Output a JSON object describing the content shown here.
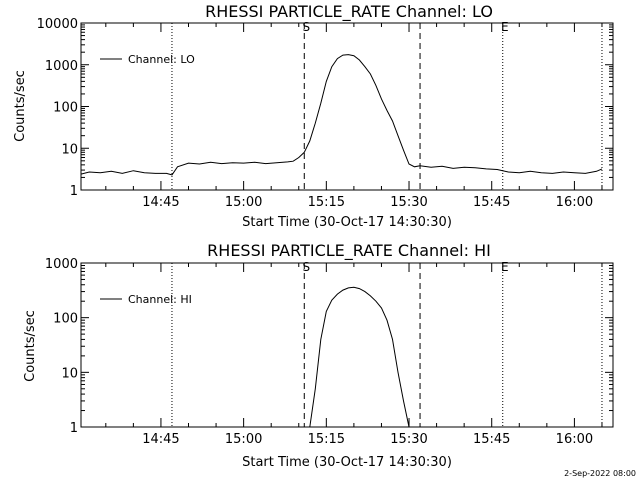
{
  "footer": {
    "date_stamp": "2-Sep-2022 08:00"
  },
  "chart_data": [
    {
      "type": "line",
      "title": "RHESSI PARTICLE_RATE Channel: LO",
      "xlabel": "Start Time (30-Oct-17 14:30:30)",
      "ylabel": "Counts/sec",
      "yscale": "log",
      "xlim": [
        "14:30:30",
        "16:07:00"
      ],
      "ylim": [
        1,
        10000
      ],
      "x_ticks": [
        "14:45",
        "15:00",
        "15:15",
        "15:30",
        "15:45",
        "16:00"
      ],
      "y_ticks": [
        "1",
        "10",
        "100",
        "1000",
        "10000"
      ],
      "legend": {
        "position": "top-left",
        "entries": [
          "Channel: LO"
        ]
      },
      "markers": [
        {
          "label": "",
          "time": "14:47",
          "style": "dotted"
        },
        {
          "label": "S",
          "time": "15:11",
          "style": "dashed"
        },
        {
          "label": "",
          "time": "15:32",
          "style": "dashed"
        },
        {
          "label": "E",
          "time": "15:47",
          "style": "dotted"
        },
        {
          "label": "",
          "time": "16:05",
          "style": "dotted"
        }
      ],
      "series": [
        {
          "name": "Channel: LO",
          "x": [
            "14:30:30",
            "14:32",
            "14:34",
            "14:36",
            "14:38",
            "14:40",
            "14:42",
            "14:44",
            "14:46",
            "14:47",
            "14:48",
            "14:50",
            "14:52",
            "14:54",
            "14:56",
            "14:58",
            "15:00",
            "15:02",
            "15:04",
            "15:06",
            "15:08",
            "15:09",
            "15:10",
            "15:11",
            "15:12",
            "15:13",
            "15:14",
            "15:15",
            "15:16",
            "15:17",
            "15:18",
            "15:19",
            "15:20",
            "15:21",
            "15:22",
            "15:23",
            "15:24",
            "15:25",
            "15:26",
            "15:27",
            "15:28",
            "15:29",
            "15:30",
            "15:31",
            "15:32",
            "15:34",
            "15:36",
            "15:38",
            "15:40",
            "15:42",
            "15:44",
            "15:46",
            "15:47",
            "15:48",
            "15:50",
            "15:52",
            "15:54",
            "15:56",
            "15:58",
            "16:00",
            "16:02",
            "16:04",
            "16:05"
          ],
          "values": [
            2.4,
            2.7,
            2.6,
            2.8,
            2.5,
            2.9,
            2.6,
            2.5,
            2.5,
            2.3,
            3.6,
            4.4,
            4.2,
            4.6,
            4.3,
            4.5,
            4.4,
            4.6,
            4.3,
            4.5,
            4.7,
            4.9,
            6,
            8,
            15,
            40,
            120,
            400,
            900,
            1400,
            1700,
            1750,
            1650,
            1300,
            900,
            600,
            320,
            150,
            80,
            45,
            20,
            9,
            4.2,
            3.6,
            3.8,
            3.5,
            3.7,
            3.3,
            3.5,
            3.4,
            3.2,
            3.1,
            2.9,
            2.7,
            2.6,
            2.8,
            2.6,
            2.5,
            2.7,
            2.6,
            2.5,
            2.8,
            3.2
          ]
        }
      ]
    },
    {
      "type": "line",
      "title": "RHESSI PARTICLE_RATE Channel: HI",
      "xlabel": "Start Time (30-Oct-17 14:30:30)",
      "ylabel": "Counts/sec",
      "yscale": "log",
      "xlim": [
        "14:30:30",
        "16:07:00"
      ],
      "ylim": [
        1,
        1000
      ],
      "x_ticks": [
        "14:45",
        "15:00",
        "15:15",
        "15:30",
        "15:45",
        "16:00"
      ],
      "y_ticks": [
        "1",
        "10",
        "100",
        "1000"
      ],
      "legend": {
        "position": "top-left",
        "entries": [
          "Channel: HI"
        ]
      },
      "markers": [
        {
          "label": "",
          "time": "14:47",
          "style": "dotted"
        },
        {
          "label": "S",
          "time": "15:11",
          "style": "dashed"
        },
        {
          "label": "",
          "time": "15:32",
          "style": "dashed"
        },
        {
          "label": "E",
          "time": "15:47",
          "style": "dotted"
        },
        {
          "label": "",
          "time": "16:05",
          "style": "dotted"
        }
      ],
      "series": [
        {
          "name": "Channel: HI",
          "x": [
            "15:12",
            "15:13",
            "15:14",
            "15:15",
            "15:16",
            "15:17",
            "15:18",
            "15:19",
            "15:20",
            "15:21",
            "15:22",
            "15:23",
            "15:24",
            "15:25",
            "15:26",
            "15:27",
            "15:28",
            "15:29",
            "15:30"
          ],
          "values": [
            1,
            5,
            40,
            130,
            210,
            270,
            320,
            350,
            360,
            340,
            300,
            250,
            200,
            150,
            90,
            40,
            10,
            3,
            1
          ]
        }
      ]
    }
  ]
}
